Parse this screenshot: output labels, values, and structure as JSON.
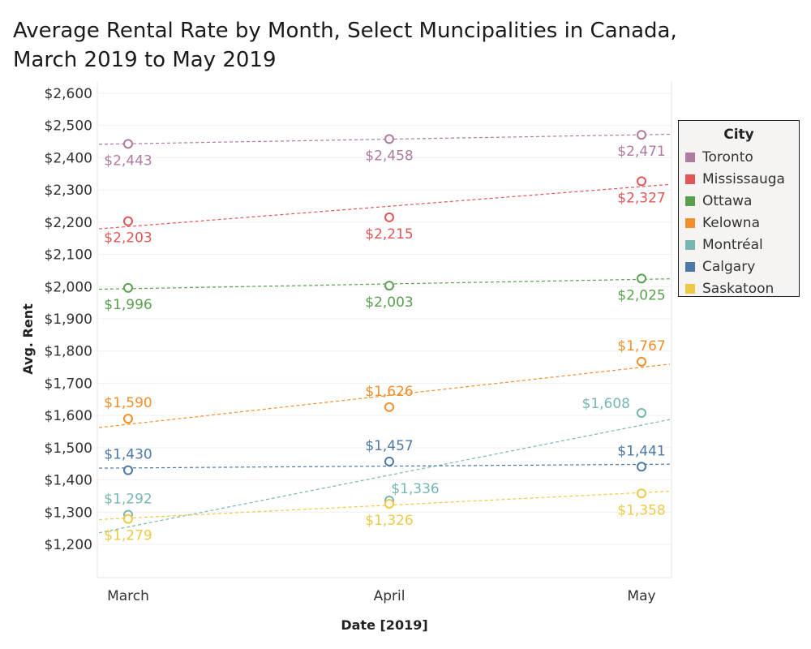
{
  "title_line1": "Average Rental Rate by Month, Select Muncipalities in Canada,",
  "title_line2": "March 2019 to May 2019",
  "legend": {
    "title": "City",
    "items": [
      {
        "label": "Toronto",
        "color": "#b07aa1"
      },
      {
        "label": "Mississauga",
        "color": "#e15759"
      },
      {
        "label": "Ottawa",
        "color": "#59a14f"
      },
      {
        "label": "Kelowna",
        "color": "#f28e2b"
      },
      {
        "label": "Montréal",
        "color": "#76b7b2"
      },
      {
        "label": "Calgary",
        "color": "#4e79a7"
      },
      {
        "label": "Saskatoon",
        "color": "#edc948"
      }
    ]
  },
  "chart_data": {
    "type": "scatter",
    "title": "Average Rental Rate by Month, Select Muncipalities in Canada, March 2019 to May 2019",
    "xlabel": "Date [2019]",
    "ylabel": "Avg. Rent",
    "categories": [
      "March",
      "April",
      "May"
    ],
    "y_ticks": [
      "$1,200",
      "$1,300",
      "$1,400",
      "$1,500",
      "$1,600",
      "$1,700",
      "$1,800",
      "$1,900",
      "$2,000",
      "$2,100",
      "$2,200",
      "$2,300",
      "$2,400",
      "$2,500",
      "$2,600"
    ],
    "y_tick_values": [
      1200,
      1300,
      1400,
      1500,
      1600,
      1700,
      1800,
      1900,
      2000,
      2100,
      2200,
      2300,
      2400,
      2500,
      2600
    ],
    "ylim": [
      1100,
      2600
    ],
    "trend_lines": true,
    "grid": true,
    "legend_position": "right",
    "series": [
      {
        "name": "Toronto",
        "color": "#b07aa1",
        "values": [
          2443,
          2458,
          2471
        ],
        "labels": [
          "$2,443",
          "$2,458",
          "$2,471"
        ],
        "label_pos": [
          "below",
          "below",
          "below"
        ]
      },
      {
        "name": "Mississauga",
        "color": "#e15759",
        "values": [
          2203,
          2215,
          2327
        ],
        "labels": [
          "$2,203",
          "$2,215",
          "$2,327"
        ],
        "label_pos": [
          "below",
          "below",
          "below"
        ]
      },
      {
        "name": "Ottawa",
        "color": "#59a14f",
        "values": [
          1996,
          2003,
          2025
        ],
        "labels": [
          "$1,996",
          "$2,003",
          "$2,025"
        ],
        "label_pos": [
          "below",
          "below",
          "below"
        ]
      },
      {
        "name": "Kelowna",
        "color": "#f28e2b",
        "values": [
          1590,
          1626,
          1767
        ],
        "labels": [
          "$1,590",
          "$1,626",
          "$1,767"
        ],
        "label_pos": [
          "above",
          "above",
          "above"
        ]
      },
      {
        "name": "Montréal",
        "color": "#76b7b2",
        "values": [
          1292,
          1336,
          1608
        ],
        "labels": [
          "$1,292",
          "$1,336",
          "$1,608"
        ],
        "label_pos": [
          "above",
          "above-right",
          "left"
        ]
      },
      {
        "name": "Calgary",
        "color": "#4e79a7",
        "values": [
          1430,
          1457,
          1441
        ],
        "labels": [
          "$1,430",
          "$1,457",
          "$1,441"
        ],
        "label_pos": [
          "above",
          "above",
          "above"
        ]
      },
      {
        "name": "Saskatoon",
        "color": "#edc948",
        "values": [
          1279,
          1326,
          1358
        ],
        "labels": [
          "$1,279",
          "$1,326",
          "$1,358"
        ],
        "label_pos": [
          "below",
          "below",
          "below"
        ]
      }
    ]
  }
}
